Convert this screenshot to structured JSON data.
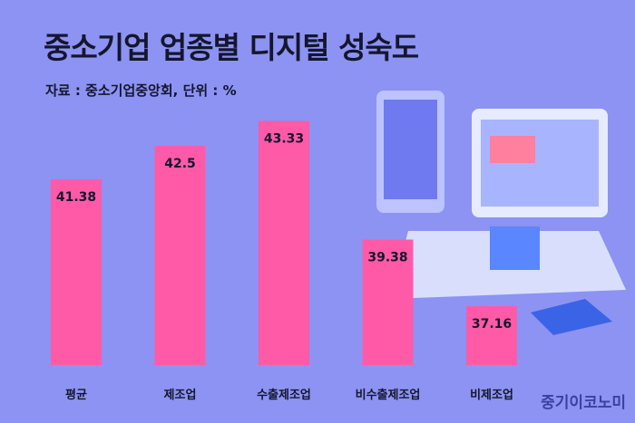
{
  "header": {
    "title": "중소기업 업종별 디지털 성숙도",
    "subtitle": "자료 : 중소기업중앙회, 단위 : %"
  },
  "watermark": "중기이코노미",
  "colors": {
    "background": "#8c93f2",
    "bar": "#ff5aa8",
    "text": "#15162e"
  },
  "chart_data": {
    "type": "bar",
    "categories": [
      "평균",
      "제조업",
      "수출제조업",
      "비수출제조업",
      "비제조업"
    ],
    "values": [
      41.38,
      42.5,
      43.33,
      39.38,
      37.16
    ],
    "value_labels": [
      "41.38",
      "42.5",
      "43.33",
      "39.38",
      "37.16"
    ],
    "title": "중소기업 업종별 디지털 성숙도",
    "xlabel": "",
    "ylabel": "",
    "ylim": [
      35.2,
      43.8
    ],
    "grid": false,
    "legend": "none"
  }
}
